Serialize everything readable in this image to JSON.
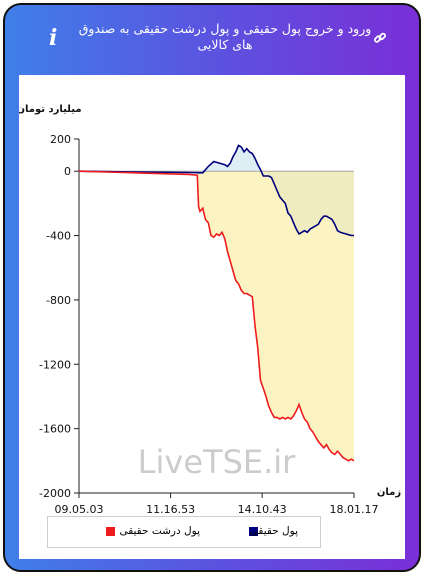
{
  "header": {
    "title": "ورود و خروج پول حقیقی و پول درشت حقیقی به صندوق های کالایی",
    "info_icon": "i",
    "colors": {
      "gradient_start": "#3f7fe8",
      "gradient_end": "#7a2fd6"
    }
  },
  "watermark": "LiveTSE.ir",
  "chart_data": {
    "type": "line",
    "ylabel": "میلیارد تومان",
    "xlabel": "زمان",
    "ylim": [
      -2000,
      200
    ],
    "yticks": [
      200,
      0,
      -400,
      -800,
      -1200,
      -1600,
      -2000
    ],
    "xticks": [
      "09.05.03",
      "11.16.53",
      "14.10.43",
      "18.01.17"
    ],
    "series": [
      {
        "name": "پول حقیقی",
        "color": "#00007f",
        "values": [
          [
            0,
            0
          ],
          [
            20,
            -5
          ],
          [
            40,
            -8
          ],
          [
            45,
            -10
          ],
          [
            47,
            30
          ],
          [
            49,
            60
          ],
          [
            51,
            50
          ],
          [
            53,
            40
          ],
          [
            54,
            30
          ],
          [
            55,
            50
          ],
          [
            56,
            90
          ],
          [
            57,
            120
          ],
          [
            58,
            160
          ],
          [
            59,
            150
          ],
          [
            60,
            120
          ],
          [
            61,
            140
          ],
          [
            62,
            120
          ],
          [
            63,
            110
          ],
          [
            64,
            80
          ],
          [
            65,
            40
          ],
          [
            66,
            10
          ],
          [
            67,
            -30
          ],
          [
            68,
            -30
          ],
          [
            69,
            -30
          ],
          [
            70,
            -40
          ],
          [
            71,
            -80
          ],
          [
            72,
            -120
          ],
          [
            73,
            -160
          ],
          [
            74,
            -180
          ],
          [
            75,
            -200
          ],
          [
            76,
            -260
          ],
          [
            77,
            -280
          ],
          [
            78,
            -320
          ],
          [
            79,
            -360
          ],
          [
            80,
            -390
          ],
          [
            81,
            -380
          ],
          [
            82,
            -370
          ],
          [
            83,
            -380
          ],
          [
            84,
            -360
          ],
          [
            85,
            -350
          ],
          [
            86,
            -340
          ],
          [
            87,
            -330
          ],
          [
            88,
            -300
          ],
          [
            89,
            -280
          ],
          [
            90,
            -280
          ],
          [
            91,
            -290
          ],
          [
            92,
            -300
          ],
          [
            93,
            -330
          ],
          [
            94,
            -370
          ],
          [
            95,
            -380
          ],
          [
            96,
            -385
          ],
          [
            97,
            -390
          ],
          [
            98,
            -395
          ],
          [
            99,
            -400
          ],
          [
            100,
            -400
          ]
        ]
      },
      {
        "name": "پول درشت حقیقی",
        "color": "#ee1c1c",
        "values": [
          [
            0,
            0
          ],
          [
            20,
            -10
          ],
          [
            40,
            -20
          ],
          [
            43,
            -25
          ],
          [
            43.5,
            -220
          ],
          [
            44,
            -250
          ],
          [
            45,
            -230
          ],
          [
            46,
            -300
          ],
          [
            47,
            -320
          ],
          [
            48,
            -400
          ],
          [
            49,
            -410
          ],
          [
            50,
            -390
          ],
          [
            51,
            -400
          ],
          [
            52,
            -380
          ],
          [
            53,
            -420
          ],
          [
            54,
            -500
          ],
          [
            55,
            -560
          ],
          [
            56,
            -620
          ],
          [
            57,
            -680
          ],
          [
            58,
            -700
          ],
          [
            59,
            -740
          ],
          [
            60,
            -760
          ],
          [
            61,
            -760
          ],
          [
            62,
            -770
          ],
          [
            63,
            -780
          ],
          [
            64,
            -960
          ],
          [
            65,
            -1100
          ],
          [
            66,
            -1300
          ],
          [
            67,
            -1350
          ],
          [
            68,
            -1400
          ],
          [
            69,
            -1460
          ],
          [
            70,
            -1500
          ],
          [
            71,
            -1530
          ],
          [
            72,
            -1530
          ],
          [
            73,
            -1540
          ],
          [
            74,
            -1530
          ],
          [
            75,
            -1540
          ],
          [
            76,
            -1530
          ],
          [
            77,
            -1540
          ],
          [
            78,
            -1520
          ],
          [
            79,
            -1490
          ],
          [
            80,
            -1450
          ],
          [
            81,
            -1500
          ],
          [
            82,
            -1540
          ],
          [
            83,
            -1560
          ],
          [
            84,
            -1600
          ],
          [
            85,
            -1620
          ],
          [
            86,
            -1650
          ],
          [
            87,
            -1680
          ],
          [
            88,
            -1700
          ],
          [
            89,
            -1720
          ],
          [
            90,
            -1700
          ],
          [
            91,
            -1730
          ],
          [
            92,
            -1750
          ],
          [
            93,
            -1760
          ],
          [
            94,
            -1740
          ],
          [
            95,
            -1760
          ],
          [
            96,
            -1780
          ],
          [
            97,
            -1790
          ],
          [
            98,
            -1800
          ],
          [
            99,
            -1790
          ],
          [
            100,
            -1800
          ]
        ]
      }
    ],
    "grid": false,
    "legend_position": "bottom"
  }
}
